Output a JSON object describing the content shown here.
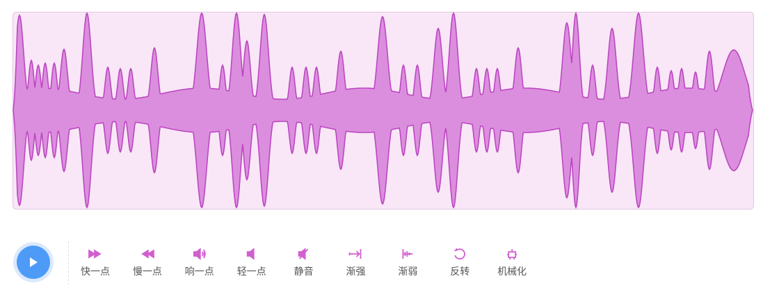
{
  "buttons": [
    "快一点",
    "慢一点",
    "响一点",
    "轻一点",
    "静音",
    "渐强",
    "渐弱",
    "反转",
    "机械化"
  ]
}
